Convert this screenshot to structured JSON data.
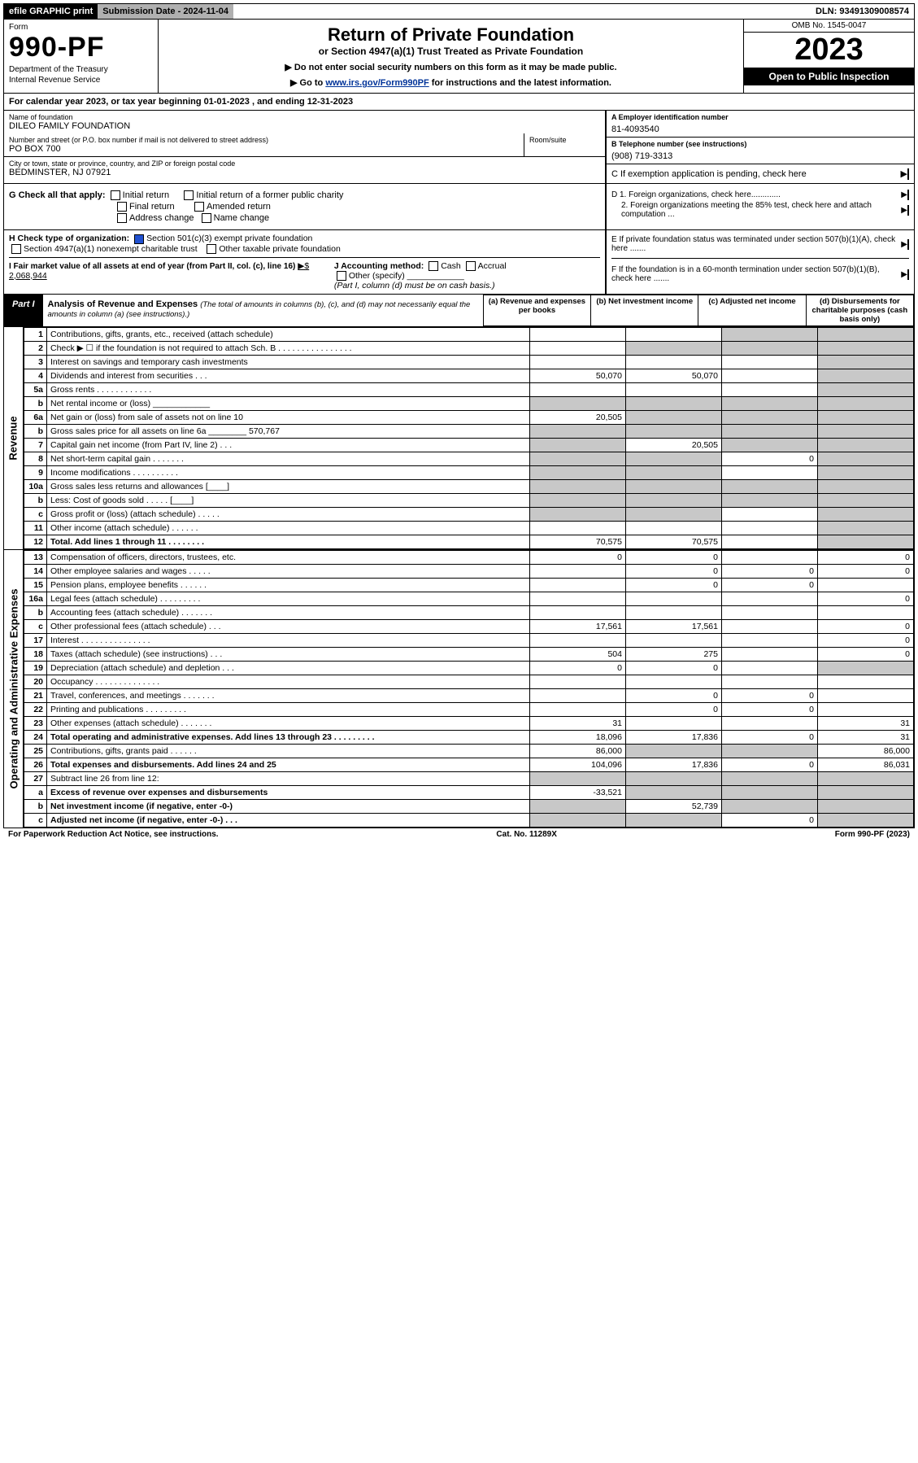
{
  "topbar": {
    "efile": "efile GRAPHIC print",
    "submission": "Submission Date - 2024-11-04",
    "dln": "DLN: 93491309008574"
  },
  "header": {
    "form_label": "Form",
    "form_no": "990-PF",
    "dept": "Department of the Treasury",
    "irs": "Internal Revenue Service",
    "title": "Return of Private Foundation",
    "subtitle": "or Section 4947(a)(1) Trust Treated as Private Foundation",
    "note1": "▶ Do not enter social security numbers on this form as it may be made public.",
    "note2_pre": "▶ Go to ",
    "note2_link": "www.irs.gov/Form990PF",
    "note2_post": " for instructions and the latest information.",
    "omb": "OMB No. 1545-0047",
    "year": "2023",
    "open": "Open to Public Inspection"
  },
  "calyear": "For calendar year 2023, or tax year beginning 01-01-2023                  , and ending 12-31-2023",
  "entity": {
    "name_label": "Name of foundation",
    "name": "DILEO FAMILY FOUNDATION",
    "addr_label": "Number and street (or P.O. box number if mail is not delivered to street address)",
    "addr": "PO BOX 700",
    "room_label": "Room/suite",
    "city_label": "City or town, state or province, country, and ZIP or foreign postal code",
    "city": "BEDMINSTER, NJ  07921",
    "A_label": "A Employer identification number",
    "A": "81-4093540",
    "B_label": "B Telephone number (see instructions)",
    "B": "(908) 719-3313",
    "C_label": "C If exemption application is pending, check here",
    "D1": "D 1. Foreign organizations, check here.............",
    "D2": "2. Foreign organizations meeting the 85% test, check here and attach computation ...",
    "E": "E  If private foundation status was terminated under section 507(b)(1)(A), check here .......",
    "F": "F  If the foundation is in a 60-month termination under section 507(b)(1)(B), check here .......",
    "G_label": "G Check all that apply:",
    "G_opts": [
      "Initial return",
      "Final return",
      "Address change",
      "Initial return of a former public charity",
      "Amended return",
      "Name change"
    ],
    "H_label": "H Check type of organization:",
    "H_opt1": "Section 501(c)(3) exempt private foundation",
    "H_opt2": "Section 4947(a)(1) nonexempt charitable trust",
    "H_opt3": "Other taxable private foundation",
    "I_label": "I Fair market value of all assets at end of year (from Part II, col. (c), line 16)",
    "I_val": "▶$  2,068,944",
    "J_label": "J Accounting method:",
    "J_opts": [
      "Cash",
      "Accrual"
    ],
    "J_other": "Other (specify)",
    "J_note": "(Part I, column (d) must be on cash basis.)"
  },
  "part1": {
    "tab": "Part I",
    "title": "Analysis of Revenue and Expenses",
    "sub": "(The total of amounts in columns (b), (c), and (d) may not necessarily equal the amounts in column (a) (see instructions).)",
    "cols": {
      "a": "(a)  Revenue and expenses per books",
      "b": "(b)  Net investment income",
      "c": "(c)  Adjusted net income",
      "d": "(d)  Disbursements for charitable purposes (cash basis only)"
    }
  },
  "sections": {
    "rev": "Revenue",
    "op": "Operating and Administrative Expenses"
  },
  "rows": [
    {
      "n": "1",
      "d": "Contributions, gifts, grants, etc., received (attach schedule)",
      "a": "",
      "b": "",
      "c": "sh",
      "dd": "sh"
    },
    {
      "n": "2",
      "d": "Check ▶ ☐ if the foundation is not required to attach Sch. B    .  .  .  .  .  .  .  .  .  .  .  .  .  .  .  .",
      "a": "",
      "b": "sh",
      "c": "sh",
      "dd": "sh"
    },
    {
      "n": "3",
      "d": "Interest on savings and temporary cash investments",
      "a": "",
      "b": "",
      "c": "",
      "dd": "sh"
    },
    {
      "n": "4",
      "d": "Dividends and interest from securities    .   .   .",
      "a": "50,070",
      "b": "50,070",
      "c": "",
      "dd": "sh"
    },
    {
      "n": "5a",
      "d": "Gross rents      .   .   .   .   .   .   .   .   .   .   .   .",
      "a": "",
      "b": "",
      "c": "",
      "dd": "sh"
    },
    {
      "n": "b",
      "d": "Net rental income or (loss)  ____________",
      "a": "sh",
      "b": "sh",
      "c": "sh",
      "dd": "sh"
    },
    {
      "n": "6a",
      "d": "Net gain or (loss) from sale of assets not on line 10",
      "a": "20,505",
      "b": "sh",
      "c": "sh",
      "dd": "sh"
    },
    {
      "n": "b",
      "d": "Gross sales price for all assets on line 6a ________ 570,767",
      "a": "sh",
      "b": "sh",
      "c": "sh",
      "dd": "sh"
    },
    {
      "n": "7",
      "d": "Capital gain net income (from Part IV, line 2)    .   .   .",
      "a": "sh",
      "b": "20,505",
      "c": "sh",
      "dd": "sh"
    },
    {
      "n": "8",
      "d": "Net short-term capital gain   .   .   .   .   .   .   .",
      "a": "sh",
      "b": "sh",
      "c": "0",
      "dd": "sh"
    },
    {
      "n": "9",
      "d": "Income modifications .   .   .   .   .   .   .   .   .   .",
      "a": "sh",
      "b": "sh",
      "c": "",
      "dd": "sh"
    },
    {
      "n": "10a",
      "d": "Gross sales less returns and allowances  [____]",
      "a": "sh",
      "b": "sh",
      "c": "sh",
      "dd": "sh"
    },
    {
      "n": "b",
      "d": "Less: Cost of goods sold    .   .   .   .   .   [____]",
      "a": "sh",
      "b": "sh",
      "c": "sh",
      "dd": "sh"
    },
    {
      "n": "c",
      "d": "Gross profit or (loss) (attach schedule)    .   .   .   .   .",
      "a": "sh",
      "b": "sh",
      "c": "",
      "dd": "sh"
    },
    {
      "n": "11",
      "d": "Other income (attach schedule)    .   .   .   .   .   .",
      "a": "",
      "b": "",
      "c": "",
      "dd": "sh"
    },
    {
      "n": "12",
      "d": "Total. Add lines 1 through 11   .   .   .   .   .   .   .   .",
      "a": "70,575",
      "b": "70,575",
      "c": "",
      "dd": "sh",
      "bold": true
    }
  ],
  "rows2": [
    {
      "n": "13",
      "d": "Compensation of officers, directors, trustees, etc.",
      "a": "0",
      "b": "0",
      "c": "",
      "dd": "0"
    },
    {
      "n": "14",
      "d": "Other employee salaries and wages    .   .   .   .   .",
      "a": "",
      "b": "0",
      "c": "0",
      "dd": "0"
    },
    {
      "n": "15",
      "d": "Pension plans, employee benefits   .   .   .   .   .   .",
      "a": "",
      "b": "0",
      "c": "0",
      "dd": ""
    },
    {
      "n": "16a",
      "d": "Legal fees (attach schedule) .   .   .   .   .   .   .   .   .",
      "a": "",
      "b": "",
      "c": "",
      "dd": "0"
    },
    {
      "n": "b",
      "d": "Accounting fees (attach schedule) .   .   .   .   .   .   .",
      "a": "",
      "b": "",
      "c": "",
      "dd": ""
    },
    {
      "n": "c",
      "d": "Other professional fees (attach schedule)    .   .   .",
      "a": "17,561",
      "b": "17,561",
      "c": "",
      "dd": "0"
    },
    {
      "n": "17",
      "d": "Interest  .   .   .   .   .   .   .   .   .   .   .   .   .   .   .",
      "a": "",
      "b": "",
      "c": "",
      "dd": "0"
    },
    {
      "n": "18",
      "d": "Taxes (attach schedule) (see instructions)     .   .   .",
      "a": "504",
      "b": "275",
      "c": "",
      "dd": "0"
    },
    {
      "n": "19",
      "d": "Depreciation (attach schedule) and depletion    .   .   .",
      "a": "0",
      "b": "0",
      "c": "",
      "dd": "sh"
    },
    {
      "n": "20",
      "d": "Occupancy .   .   .   .   .   .   .   .   .   .   .   .   .   .",
      "a": "",
      "b": "",
      "c": "",
      "dd": ""
    },
    {
      "n": "21",
      "d": "Travel, conferences, and meetings .   .   .   .   .   .   .",
      "a": "",
      "b": "0",
      "c": "0",
      "dd": ""
    },
    {
      "n": "22",
      "d": "Printing and publications .   .   .   .   .   .   .   .   .",
      "a": "",
      "b": "0",
      "c": "0",
      "dd": ""
    },
    {
      "n": "23",
      "d": "Other expenses (attach schedule) .   .   .   .   .   .   .",
      "a": "31",
      "b": "",
      "c": "",
      "dd": "31"
    },
    {
      "n": "24",
      "d": "Total operating and administrative expenses. Add lines 13 through 23   .   .   .   .   .   .   .   .   .",
      "a": "18,096",
      "b": "17,836",
      "c": "0",
      "dd": "31",
      "bold": true
    },
    {
      "n": "25",
      "d": "Contributions, gifts, grants paid    .   .   .   .   .   .",
      "a": "86,000",
      "b": "sh",
      "c": "sh",
      "dd": "86,000"
    },
    {
      "n": "26",
      "d": "Total expenses and disbursements. Add lines 24 and 25",
      "a": "104,096",
      "b": "17,836",
      "c": "0",
      "dd": "86,031",
      "bold": true
    },
    {
      "n": "27",
      "d": "Subtract line 26 from line 12:",
      "a": "sh",
      "b": "sh",
      "c": "sh",
      "dd": "sh"
    },
    {
      "n": "a",
      "d": "Excess of revenue over expenses and disbursements",
      "a": "-33,521",
      "b": "sh",
      "c": "sh",
      "dd": "sh",
      "bold": true
    },
    {
      "n": "b",
      "d": "Net investment income (if negative, enter -0-)",
      "a": "sh",
      "b": "52,739",
      "c": "sh",
      "dd": "sh",
      "bold": true
    },
    {
      "n": "c",
      "d": "Adjusted net income (if negative, enter -0-)    .   .   .",
      "a": "sh",
      "b": "sh",
      "c": "0",
      "dd": "sh",
      "bold": true
    }
  ],
  "footer": {
    "left": "For Paperwork Reduction Act Notice, see instructions.",
    "mid": "Cat. No. 11289X",
    "right": "Form 990-PF (2023)"
  }
}
